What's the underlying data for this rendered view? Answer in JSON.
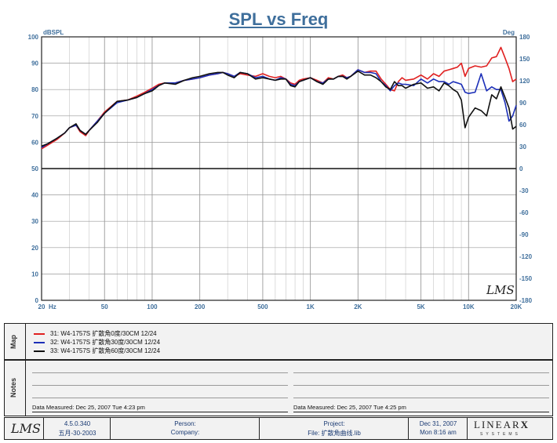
{
  "chart_data": {
    "type": "line",
    "title": "SPL vs Freq",
    "xlabel": "Hz",
    "ylabel_left": "dBSPL",
    "ylabel_right": "Deg",
    "x_scale": "log",
    "xlim": [
      20,
      20000
    ],
    "ylim_left": [
      0,
      100
    ],
    "ylim_right": [
      -180,
      180
    ],
    "grid": true,
    "x_ticks": [
      {
        "value": 20,
        "label": "20"
      },
      {
        "value": 50,
        "label": "50"
      },
      {
        "value": 100,
        "label": "100"
      },
      {
        "value": 200,
        "label": "200"
      },
      {
        "value": 500,
        "label": "500"
      },
      {
        "value": 1000,
        "label": "1K"
      },
      {
        "value": 2000,
        "label": "2K"
      },
      {
        "value": 5000,
        "label": "5K"
      },
      {
        "value": 10000,
        "label": "10K"
      },
      {
        "value": 20000,
        "label": "20K"
      }
    ],
    "y_ticks_left": [
      "0",
      "10",
      "20",
      "30",
      "40",
      "50",
      "60",
      "70",
      "80",
      "90",
      "100"
    ],
    "y_ticks_right": [
      "-180",
      "-150",
      "-120",
      "-90",
      "-60",
      "-30",
      "0",
      "30",
      "60",
      "90",
      "120",
      "150",
      "180"
    ],
    "watermark": "LMS",
    "series": [
      {
        "name": "31: W4-1757S  扩散角0度/30CM  12/24",
        "color": "#e02020",
        "x": [
          20,
          22,
          25,
          28,
          30,
          33,
          35,
          38,
          40,
          45,
          50,
          60,
          70,
          80,
          90,
          100,
          110,
          120,
          140,
          160,
          180,
          200,
          230,
          260,
          280,
          300,
          330,
          360,
          400,
          450,
          500,
          550,
          600,
          650,
          700,
          750,
          800,
          850,
          900,
          1000,
          1100,
          1200,
          1300,
          1400,
          1500,
          1600,
          1700,
          1800,
          2000,
          2200,
          2400,
          2600,
          2800,
          3000,
          3200,
          3400,
          3600,
          3800,
          4000,
          4500,
          5000,
          5500,
          6000,
          6500,
          7000,
          7500,
          8000,
          8500,
          9000,
          9500,
          10000,
          11000,
          12000,
          13000,
          14000,
          15000,
          16000,
          17000,
          18000,
          19000,
          20000
        ],
        "y": [
          57.5,
          59,
          61,
          63.5,
          65.5,
          66.5,
          64,
          62.5,
          64.5,
          68,
          71.5,
          75.5,
          76,
          77.5,
          79,
          80.5,
          82,
          82.5,
          82.5,
          83.5,
          84,
          84.5,
          85.5,
          86,
          86.5,
          86,
          85,
          86,
          85.5,
          85,
          86,
          85,
          84.5,
          85,
          84,
          82.5,
          82,
          83.5,
          84,
          84.5,
          83.5,
          82.5,
          84.5,
          84,
          85,
          85.5,
          84.5,
          85,
          87.5,
          86.5,
          87,
          87,
          84,
          82,
          80,
          79.5,
          83,
          84.5,
          83.5,
          84,
          85.5,
          84,
          86,
          85,
          87,
          87.5,
          88,
          88.5,
          90,
          85,
          88,
          89,
          88.5,
          89,
          92,
          92.5,
          96,
          92,
          88,
          83,
          84
        ]
      },
      {
        "name": "32: W4-1757S  扩散角30度/30CM  12/24",
        "color": "#1c2fb8",
        "x": [
          20,
          22,
          25,
          28,
          30,
          33,
          35,
          38,
          40,
          45,
          50,
          60,
          70,
          80,
          90,
          100,
          110,
          120,
          140,
          160,
          180,
          200,
          230,
          260,
          280,
          300,
          330,
          360,
          400,
          450,
          500,
          550,
          600,
          650,
          700,
          750,
          800,
          850,
          900,
          1000,
          1100,
          1200,
          1300,
          1400,
          1500,
          1600,
          1700,
          1800,
          2000,
          2200,
          2400,
          2600,
          2800,
          3000,
          3200,
          3400,
          3600,
          3800,
          4000,
          4500,
          5000,
          5500,
          6000,
          6500,
          7000,
          7500,
          8000,
          8500,
          9000,
          9500,
          10000,
          11000,
          12000,
          13000,
          14000,
          15000,
          16000,
          17000,
          18000,
          19000,
          20000
        ],
        "y": [
          58,
          59.5,
          61.5,
          63.5,
          65.5,
          66.5,
          64.5,
          63,
          64.5,
          68,
          71,
          75,
          76,
          77,
          78.5,
          80,
          81.5,
          82.5,
          82.5,
          83.5,
          84,
          84.5,
          85.5,
          86,
          86.5,
          86,
          85,
          86.5,
          86,
          84.5,
          85,
          84,
          83.5,
          84.5,
          84,
          82,
          81.5,
          83,
          83.5,
          84.5,
          83,
          82.5,
          84,
          84,
          85,
          85,
          84.5,
          85,
          87.5,
          86.5,
          86.5,
          86,
          83,
          81.5,
          79.5,
          81.5,
          82.5,
          82,
          82,
          81.5,
          84,
          82.5,
          84,
          83,
          83,
          82,
          83,
          82.5,
          82,
          79,
          78.5,
          79,
          86,
          79.5,
          81,
          80,
          80,
          75,
          68,
          70,
          74
        ]
      },
      {
        "name": "33: W4-1757S  扩散角60度/30CM  12/24",
        "color": "#101010",
        "x": [
          20,
          22,
          25,
          28,
          30,
          33,
          35,
          38,
          40,
          45,
          50,
          60,
          70,
          80,
          90,
          100,
          110,
          120,
          140,
          160,
          180,
          200,
          230,
          260,
          280,
          300,
          330,
          360,
          400,
          450,
          500,
          550,
          600,
          650,
          700,
          750,
          800,
          850,
          900,
          1000,
          1100,
          1200,
          1300,
          1400,
          1500,
          1600,
          1700,
          1800,
          2000,
          2200,
          2400,
          2600,
          2800,
          3000,
          3200,
          3400,
          3600,
          3800,
          4000,
          4500,
          5000,
          5500,
          6000,
          6500,
          7000,
          7500,
          8000,
          8500,
          9000,
          9500,
          10000,
          11000,
          12000,
          13000,
          14000,
          15000,
          16000,
          17000,
          18000,
          19000,
          20000
        ],
        "y": [
          58.5,
          59.5,
          61.5,
          63.5,
          65.5,
          67,
          64.5,
          63,
          64.5,
          67.5,
          71,
          75.5,
          76,
          77,
          78.5,
          79.5,
          81.5,
          82.5,
          82,
          83.5,
          84.5,
          85,
          86,
          86.5,
          86.5,
          85.5,
          84.5,
          86.5,
          86,
          84,
          84.5,
          84,
          83.5,
          84,
          84,
          81.5,
          81,
          83,
          83.5,
          84.5,
          83,
          82,
          84,
          84,
          85,
          85,
          84,
          85,
          87,
          85.5,
          85.5,
          84.5,
          83,
          81,
          80,
          83,
          81.5,
          81.5,
          80.5,
          82,
          82.5,
          80.5,
          81,
          79.5,
          82.5,
          81.5,
          80,
          79,
          76,
          65.5,
          69.5,
          73,
          72,
          70,
          78,
          76.5,
          81,
          77,
          73,
          65,
          66
        ]
      }
    ]
  },
  "legend": {
    "side_label": "Map",
    "items": [
      {
        "text": "31: W4-1757S  扩散角0度/30CM  12/24",
        "color": "#e02020"
      },
      {
        "text": "32: W4-1757S  扩散角30度/30CM  12/24",
        "color": "#1c2fb8"
      },
      {
        "text": "33: W4-1757S  扩散角60度/30CM  12/24",
        "color": "#101010"
      }
    ]
  },
  "notes": {
    "side_label": "Notes",
    "left_measured": "Data Measured: Dec 25, 2007  Tue  4:23 pm",
    "right_measured": "Data Measured: Dec 25, 2007  Tue  4:25 pm"
  },
  "footer": {
    "logo": "LMS",
    "version": "4.5.0.340",
    "version_date": "五月-30-2003",
    "person_label": "Person:",
    "company_label": "Company:",
    "project_label": "Project:",
    "file_label": "File: 扩散角曲线.lib",
    "date": "Dec 31, 2007",
    "time": "Mon  8:16 am",
    "brand": "LINEAR",
    "brand_x": "X",
    "brand_sub": "SYSTEMS"
  }
}
